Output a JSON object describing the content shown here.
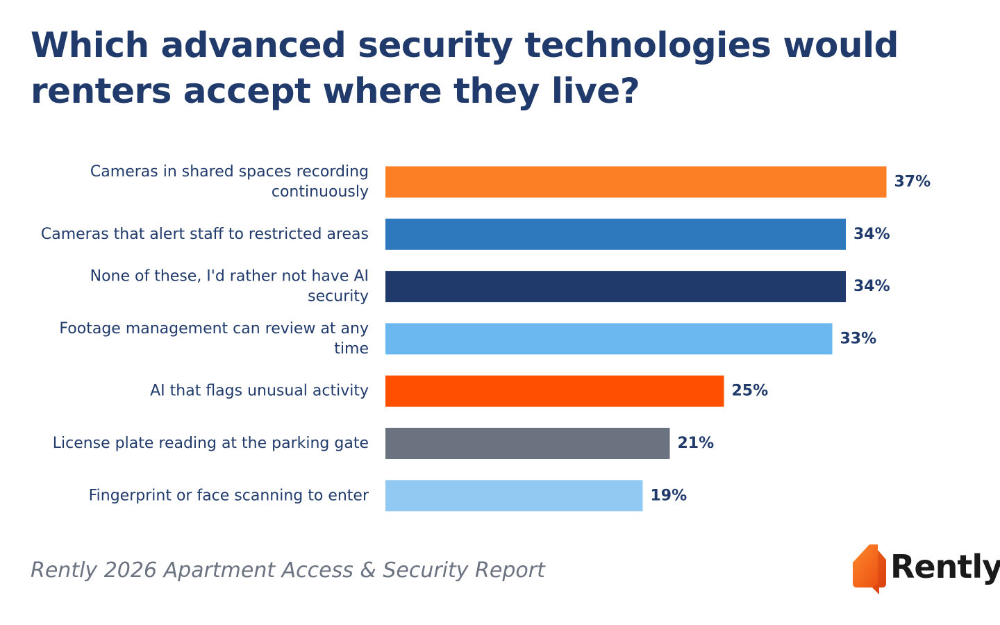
{
  "title": "Which advanced security technologies would renters accept where they live?",
  "source": "Rently 2026 Apartment Access & Security Report",
  "logo": {
    "text": "Rently",
    "icon": "house-speech-bubble-icon",
    "accent": "#f26522"
  },
  "chart_data": {
    "type": "bar",
    "orientation": "horizontal",
    "title": "Which advanced security technologies would renters accept where they live?",
    "xlabel": "",
    "ylabel": "",
    "xlim": [
      0,
      40
    ],
    "grid": false,
    "legend": "none",
    "unit": "%",
    "categories": [
      [
        "Cameras in shared spaces recording",
        "continuously"
      ],
      [
        "Cameras that alert staff to restricted areas"
      ],
      [
        "None of these, I'd rather not have AI",
        "security"
      ],
      [
        "Footage management can review at any",
        "time"
      ],
      [
        "AI that flags unusual activity"
      ],
      [
        "License plate reading at the parking gate"
      ],
      [
        "Fingerprint or face scanning to enter"
      ]
    ],
    "values": [
      37,
      34,
      34,
      33,
      25,
      21,
      19
    ],
    "value_labels": [
      "37%",
      "34%",
      "34%",
      "33%",
      "25%",
      "21%",
      "19%"
    ],
    "colors": [
      "#fd7f25",
      "#2e78bd",
      "#1f3a6b",
      "#6bb7ef",
      "#fe5000",
      "#6b7280",
      "#92c9f2"
    ]
  }
}
